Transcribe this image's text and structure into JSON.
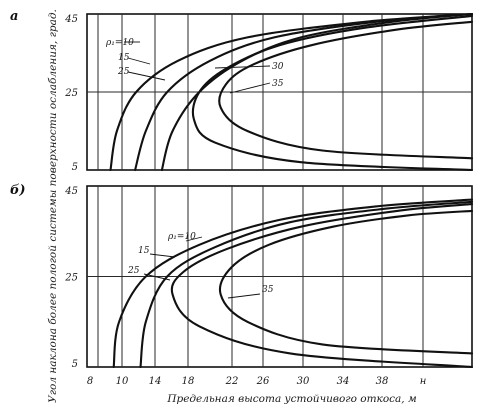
{
  "chart_data": [
    {
      "type": "line",
      "panel_label": "а",
      "title": "",
      "xlabel": "Предельная высота устойчивого откоса, м",
      "ylabel": "Угол наклона более пологой системы поверхности ослабления, град.",
      "xlim": [
        8,
        44
      ],
      "ylim": [
        5,
        45
      ],
      "y_ticks": [
        {
          "value": 45,
          "label": "45"
        },
        {
          "value": 25,
          "label": "25"
        },
        {
          "value": 5,
          "label": "5"
        }
      ],
      "grid": true,
      "series": [
        {
          "name": "ρ₁=10",
          "label": "ρ₁=10",
          "points": [
            [
              10.2,
              5
            ],
            [
              10.8,
              15
            ],
            [
              12.6,
              25
            ],
            [
              16.5,
              33
            ],
            [
              23,
              39
            ],
            [
              34,
              43
            ],
            [
              44,
              45
            ]
          ]
        },
        {
          "name": "15",
          "label": "15",
          "points": [
            [
              12.5,
              5
            ],
            [
              13.5,
              15
            ],
            [
              15.5,
              25
            ],
            [
              19.5,
              33
            ],
            [
              25.5,
              39
            ],
            [
              35,
              43
            ],
            [
              44,
              45
            ]
          ]
        },
        {
          "name": "25",
          "label": "25",
          "points": [
            [
              15,
              5
            ],
            [
              16,
              15
            ],
            [
              18.5,
              25
            ],
            [
              22.5,
              33
            ],
            [
              28,
              39
            ],
            [
              36.5,
              43
            ],
            [
              44,
              45
            ]
          ]
        },
        {
          "name": "30",
          "label": "30",
          "points": [
            [
              44,
              5
            ],
            [
              28,
              7
            ],
            [
              20,
              12
            ],
            [
              18,
              18
            ],
            [
              18.5,
              25
            ],
            [
              21,
              31
            ],
            [
              26,
              37
            ],
            [
              34,
              41.5
            ],
            [
              44,
              44.5
            ]
          ]
        },
        {
          "name": "35",
          "label": "35",
          "points": [
            [
              44,
              8
            ],
            [
              30,
              10
            ],
            [
              23,
              15
            ],
            [
              20.5,
              21
            ],
            [
              21,
              27
            ],
            [
              23.5,
              32
            ],
            [
              29,
              37
            ],
            [
              37,
              41
            ],
            [
              44,
              43
            ]
          ]
        }
      ]
    },
    {
      "type": "line",
      "panel_label": "б)",
      "title": "",
      "xlabel": "Предельная высота устойчивого откоса, м",
      "ylabel": "Угол наклона более пологой системы поверхности ослабления, град.",
      "xlim": [
        8,
        44
      ],
      "ylim": [
        5,
        45
      ],
      "x_ticks": [
        {
          "value": 8,
          "label": "8"
        },
        {
          "value": 10,
          "label": "10"
        },
        {
          "value": 14,
          "label": "14"
        },
        {
          "value": 18,
          "label": "18"
        },
        {
          "value": 22,
          "label": "22"
        },
        {
          "value": 26,
          "label": "26"
        },
        {
          "value": 30,
          "label": "30"
        },
        {
          "value": 34,
          "label": "34"
        },
        {
          "value": 38,
          "label": "38"
        },
        {
          "value": 44,
          "label": "н"
        }
      ],
      "y_ticks": [
        {
          "value": 45,
          "label": "45"
        },
        {
          "value": 25,
          "label": "25"
        },
        {
          "value": 5,
          "label": "5"
        }
      ],
      "grid": true,
      "series": [
        {
          "name": "ρ₁=10",
          "label": "ρ₁=10",
          "points": [
            [
              10.5,
              5
            ],
            [
              11,
              15
            ],
            [
              13.5,
              25
            ],
            [
              18.5,
              32
            ],
            [
              26,
              37.5
            ],
            [
              35,
              40.5
            ],
            [
              44,
              42
            ]
          ]
        },
        {
          "name": "15",
          "label": "15",
          "points": [
            [
              13,
              5
            ],
            [
              13.5,
              15
            ],
            [
              15.5,
              25
            ],
            [
              20,
              31.5
            ],
            [
              27,
              37
            ],
            [
              36,
              40
            ],
            [
              44,
              41.5
            ]
          ]
        },
        {
          "name": "25",
          "label": "25",
          "points": [
            [
              44,
              5
            ],
            [
              27,
              8
            ],
            [
              18.5,
              14
            ],
            [
              16,
              21
            ],
            [
              17,
              26
            ],
            [
              21,
              31
            ],
            [
              28,
              36
            ],
            [
              37,
              39.5
            ],
            [
              44,
              41
            ]
          ]
        },
        {
          "name": "35",
          "label": "35",
          "points": [
            [
              44,
              8
            ],
            [
              30,
              10
            ],
            [
              23,
              15
            ],
            [
              20.5,
              21
            ],
            [
              21.5,
              27
            ],
            [
              25,
              32
            ],
            [
              31,
              36
            ],
            [
              38,
              38.5
            ],
            [
              44,
              39.5
            ]
          ]
        }
      ]
    }
  ]
}
